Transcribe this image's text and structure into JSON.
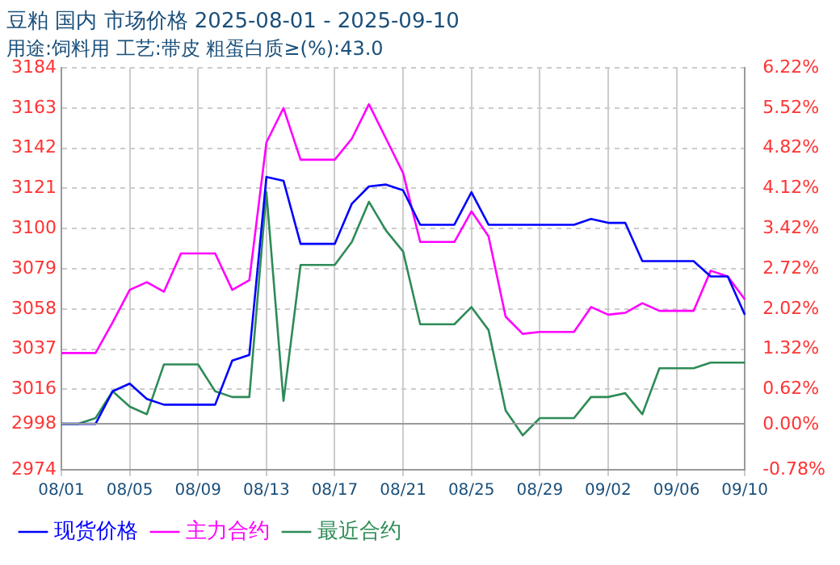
{
  "chart_data": {
    "type": "line",
    "title": "豆粕 国内 市场价格 2025-08-01 - 2025-09-10",
    "subtitle": "用途:饲料用 工艺:带皮 粗蛋白质≥(%):43.0",
    "categories": [
      "08/01",
      null,
      null,
      null,
      "08/05",
      null,
      null,
      null,
      "08/09",
      null,
      null,
      null,
      "08/13",
      null,
      null,
      null,
      "08/17",
      null,
      null,
      null,
      "08/21",
      null,
      null,
      null,
      "08/25",
      null,
      null,
      null,
      "08/29",
      null,
      null,
      null,
      "09/02",
      null,
      null,
      null,
      "09/06",
      null,
      null,
      null,
      "09/10"
    ],
    "series": [
      {
        "name": "现货价格",
        "color": "#0000ff",
        "values": [
          2998,
          2998,
          2998,
          3015,
          3019,
          3011,
          3008,
          3008,
          3008,
          3008,
          3031,
          3034,
          3127,
          3125,
          3092,
          3092,
          3092,
          3113,
          3122,
          3123,
          3120,
          3102,
          3102,
          3102,
          3119,
          3102,
          3102,
          3102,
          3102,
          3102,
          3102,
          3105,
          3103,
          3103,
          3083,
          3083,
          3083,
          3083,
          3075,
          3075,
          3055
        ]
      },
      {
        "name": "主力合约",
        "color": "#ff00ff",
        "values": [
          3035,
          3035,
          3035,
          3051,
          3068,
          3072,
          3067,
          3087,
          3087,
          3087,
          3068,
          3073,
          3145,
          3163,
          3136,
          3136,
          3136,
          3147,
          3165,
          3147,
          3129,
          3093,
          3093,
          3093,
          3109,
          3096,
          3054,
          3045,
          3046,
          3046,
          3046,
          3059,
          3055,
          3056,
          3061,
          3057,
          3057,
          3057,
          3078,
          3075,
          3063
        ]
      },
      {
        "name": "最近合约",
        "color": "#2e8b57",
        "values": [
          2998,
          2998,
          3001,
          3015,
          3007,
          3003,
          3029,
          3029,
          3029,
          3015,
          3012,
          3012,
          3119,
          3010,
          3081,
          3081,
          3081,
          3093,
          3114,
          3099,
          3088,
          3050,
          3050,
          3050,
          3059,
          3047,
          3005,
          2992,
          3001,
          3001,
          3001,
          3012,
          3012,
          3014,
          3003,
          3027,
          3027,
          3027,
          3030,
          3030,
          3030
        ]
      }
    ],
    "ylim": [
      2974,
      3184
    ],
    "yticks": [
      2974,
      2998,
      3016,
      3037,
      3058,
      3079,
      3100,
      3121,
      3142,
      3163,
      3184
    ],
    "y2lim": [
      -0.78,
      6.22
    ],
    "y2ticks": [
      {
        "value": -0.78,
        "label": "-0.78%"
      },
      {
        "value": 0,
        "label": "0.00%"
      },
      {
        "value": 0.62,
        "label": "0.62%"
      },
      {
        "value": 1.32,
        "label": "1.32%"
      },
      {
        "value": 2.02,
        "label": "2.02%"
      },
      {
        "value": 2.72,
        "label": "2.72%"
      },
      {
        "value": 3.42,
        "label": "3.42%"
      },
      {
        "value": 4.12,
        "label": "4.12%"
      },
      {
        "value": 4.82,
        "label": "4.82%"
      },
      {
        "value": 5.52,
        "label": "5.52%"
      },
      {
        "value": 6.22,
        "label": "6.22%"
      }
    ],
    "ref_lines": [
      {
        "axis": "y",
        "value": 2998,
        "color": "#999999"
      }
    ],
    "grid": true,
    "legend": "bottom",
    "marker": "none",
    "line_style": "solid"
  }
}
